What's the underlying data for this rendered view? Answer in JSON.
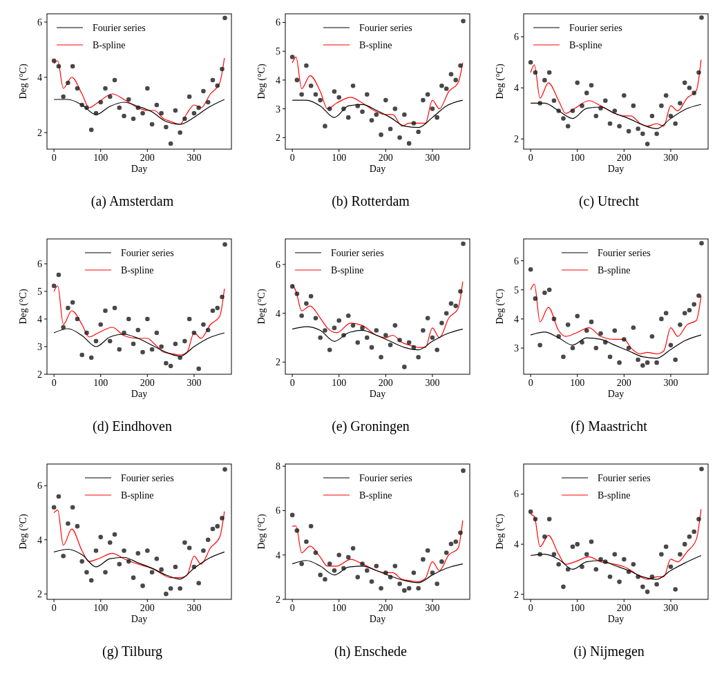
{
  "chart_data": [
    {
      "type": "scatter",
      "title": "(a) Amsterdam",
      "xlabel": "Day",
      "ylabel": "Deg (°C)",
      "xlim": [
        -15,
        380
      ],
      "ylim": [
        1.4,
        6.3
      ],
      "xticks": [
        0,
        100,
        200,
        300
      ],
      "yticks": [
        2,
        4,
        6
      ],
      "legend": "top left",
      "series": [
        {
          "color": "#1a1a1a",
          "marker": "circle",
          "x": [
            0,
            10,
            20,
            30,
            40,
            50,
            60,
            70,
            80,
            90,
            100,
            110,
            120,
            130,
            140,
            150,
            160,
            170,
            180,
            190,
            200,
            210,
            220,
            230,
            240,
            250,
            260,
            270,
            280,
            290,
            300,
            310,
            320,
            330,
            340,
            350,
            360,
            366
          ],
          "values": [
            4.6,
            4.4,
            3.3,
            3.8,
            4.4,
            3.6,
            3.0,
            2.9,
            2.1,
            2.7,
            3.1,
            3.6,
            3.3,
            3.9,
            2.9,
            2.6,
            3.2,
            2.5,
            2.9,
            2.7,
            3.6,
            2.3,
            3.0,
            2.7,
            2.2,
            1.6,
            2.8,
            2.0,
            2.5,
            3.3,
            2.7,
            2.9,
            3.5,
            3.1,
            3.9,
            3.7,
            4.3,
            6.15
          ]
        },
        {
          "type": "line",
          "name": "Fourier series",
          "color": "#000000",
          "x": [
            0,
            30,
            60,
            90,
            120,
            150,
            180,
            210,
            240,
            270,
            300,
            330,
            365
          ],
          "values": [
            3.2,
            3.2,
            3.0,
            2.65,
            2.95,
            3.1,
            2.95,
            2.75,
            2.4,
            2.3,
            2.55,
            2.9,
            3.2
          ]
        },
        {
          "type": "line",
          "name": "B-spline",
          "color": "#ff0000",
          "x": [
            0,
            8,
            20,
            38,
            60,
            75,
            95,
            125,
            150,
            180,
            200,
            215,
            235,
            250,
            270,
            285,
            300,
            315,
            335,
            355,
            365
          ],
          "values": [
            4.5,
            4.6,
            3.6,
            4.0,
            3.4,
            2.9,
            3.1,
            3.4,
            3.2,
            2.9,
            2.8,
            2.8,
            2.5,
            2.4,
            2.3,
            2.7,
            3.0,
            2.9,
            3.4,
            3.8,
            4.7
          ]
        }
      ]
    },
    {
      "type": "scatter",
      "title": "(b) Rotterdam",
      "xlabel": "Day",
      "ylabel": "Deg (°C)",
      "xlim": [
        -15,
        380
      ],
      "ylim": [
        1.6,
        6.3
      ],
      "xticks": [
        0,
        100,
        200,
        300
      ],
      "yticks": [
        2,
        3,
        4,
        5,
        6
      ],
      "legend": "top",
      "series": [
        {
          "color": "#1a1a1a",
          "marker": "circle",
          "x": [
            0,
            10,
            20,
            30,
            40,
            50,
            60,
            70,
            80,
            90,
            100,
            110,
            120,
            130,
            140,
            150,
            160,
            170,
            180,
            190,
            200,
            210,
            220,
            230,
            240,
            250,
            260,
            270,
            280,
            290,
            300,
            310,
            320,
            330,
            340,
            350,
            360,
            366
          ],
          "values": [
            4.8,
            4.0,
            3.5,
            4.5,
            3.8,
            3.5,
            3.3,
            2.4,
            3.0,
            3.6,
            3.4,
            3.0,
            2.7,
            3.8,
            3.1,
            2.9,
            3.5,
            2.6,
            2.8,
            2.1,
            3.3,
            2.3,
            3.0,
            2.0,
            2.8,
            1.8,
            2.5,
            2.2,
            3.3,
            3.5,
            3.0,
            2.7,
            3.8,
            3.7,
            4.2,
            4.0,
            4.5,
            6.05
          ]
        },
        {
          "type": "line",
          "name": "Fourier series",
          "color": "#000000",
          "x": [
            0,
            30,
            60,
            90,
            120,
            150,
            180,
            210,
            240,
            270,
            300,
            330,
            365
          ],
          "values": [
            3.3,
            3.3,
            3.1,
            2.7,
            3.1,
            3.15,
            2.95,
            2.7,
            2.4,
            2.35,
            2.7,
            3.1,
            3.3
          ]
        },
        {
          "type": "line",
          "name": "B-spline",
          "color": "#ff0000",
          "x": [
            0,
            8,
            20,
            38,
            60,
            75,
            95,
            125,
            150,
            180,
            200,
            215,
            235,
            250,
            270,
            285,
            300,
            315,
            335,
            355,
            365
          ],
          "values": [
            4.6,
            4.8,
            3.7,
            4.15,
            3.6,
            3.0,
            3.2,
            3.4,
            3.2,
            2.9,
            2.8,
            2.8,
            2.4,
            2.5,
            2.5,
            2.5,
            3.3,
            3.0,
            3.6,
            3.9,
            4.6
          ]
        }
      ]
    },
    {
      "type": "scatter",
      "title": "(c) Utrecht",
      "xlabel": "Day",
      "ylabel": "Deg (°C)",
      "xlim": [
        -15,
        380
      ],
      "ylim": [
        1.6,
        6.9
      ],
      "xticks": [
        0,
        100,
        200,
        300
      ],
      "yticks": [
        2,
        4,
        6
      ],
      "legend": "top left",
      "series": [
        {
          "color": "#1a1a1a",
          "marker": "circle",
          "x": [
            0,
            10,
            20,
            30,
            40,
            50,
            60,
            70,
            80,
            90,
            100,
            110,
            120,
            130,
            140,
            150,
            160,
            170,
            180,
            190,
            200,
            210,
            220,
            230,
            240,
            250,
            260,
            270,
            280,
            290,
            300,
            310,
            320,
            330,
            340,
            350,
            360,
            366
          ],
          "values": [
            5.0,
            4.6,
            3.4,
            4.3,
            4.6,
            3.5,
            3.1,
            2.8,
            2.5,
            3.1,
            4.2,
            3.3,
            3.8,
            4.1,
            2.9,
            3.2,
            3.5,
            2.6,
            3.1,
            2.5,
            3.7,
            2.3,
            3.3,
            2.4,
            2.2,
            1.8,
            2.9,
            2.2,
            3.3,
            3.7,
            2.9,
            2.6,
            3.4,
            4.2,
            4.0,
            3.8,
            4.6,
            6.75
          ]
        },
        {
          "type": "line",
          "name": "Fourier series",
          "color": "#000000",
          "x": [
            0,
            30,
            60,
            90,
            120,
            150,
            180,
            210,
            240,
            270,
            300,
            330,
            365
          ],
          "values": [
            3.4,
            3.4,
            3.1,
            2.8,
            3.2,
            3.25,
            3.0,
            2.8,
            2.55,
            2.4,
            2.8,
            3.15,
            3.35
          ]
        },
        {
          "type": "line",
          "name": "B-spline",
          "color": "#ff0000",
          "x": [
            0,
            8,
            20,
            38,
            60,
            75,
            95,
            125,
            150,
            180,
            200,
            215,
            235,
            250,
            270,
            285,
            300,
            315,
            335,
            355,
            365
          ],
          "values": [
            4.6,
            4.9,
            3.6,
            4.2,
            3.5,
            3.0,
            3.2,
            3.5,
            3.3,
            3.0,
            2.9,
            2.9,
            2.6,
            2.5,
            2.6,
            2.5,
            3.3,
            3.1,
            3.6,
            3.9,
            5.1
          ]
        }
      ]
    },
    {
      "type": "scatter",
      "title": "(d) Eindhoven",
      "xlabel": "Day",
      "ylabel": "Deg (°C)",
      "xlim": [
        -15,
        380
      ],
      "ylim": [
        2,
        6.9
      ],
      "xticks": [
        0,
        100,
        200,
        300
      ],
      "yticks": [
        2,
        3,
        4,
        5,
        6
      ],
      "legend": "top",
      "series": [
        {
          "color": "#1a1a1a",
          "marker": "circle",
          "x": [
            0,
            10,
            20,
            30,
            40,
            50,
            60,
            70,
            80,
            90,
            100,
            110,
            120,
            130,
            140,
            150,
            160,
            170,
            180,
            190,
            200,
            210,
            220,
            230,
            240,
            250,
            260,
            270,
            280,
            290,
            300,
            310,
            320,
            330,
            340,
            350,
            360,
            366
          ],
          "values": [
            5.2,
            5.6,
            3.7,
            4.4,
            4.6,
            4.0,
            2.7,
            3.5,
            2.6,
            3.2,
            3.8,
            4.3,
            3.2,
            4.4,
            2.9,
            3.5,
            4.0,
            3.1,
            3.6,
            2.8,
            4.0,
            2.9,
            3.5,
            3.0,
            2.4,
            2.3,
            3.1,
            2.6,
            3.2,
            4.0,
            3.5,
            2.2,
            3.8,
            3.6,
            4.3,
            4.4,
            4.8,
            6.7
          ]
        },
        {
          "type": "line",
          "name": "Fourier series",
          "color": "#000000",
          "x": [
            0,
            30,
            60,
            90,
            120,
            150,
            180,
            210,
            240,
            270,
            300,
            330,
            365
          ],
          "values": [
            3.5,
            3.65,
            3.4,
            3.0,
            3.35,
            3.45,
            3.3,
            3.05,
            2.8,
            2.65,
            3.0,
            3.3,
            3.5
          ]
        },
        {
          "type": "line",
          "name": "B-spline",
          "color": "#ff0000",
          "x": [
            0,
            8,
            20,
            38,
            60,
            75,
            95,
            125,
            150,
            180,
            200,
            215,
            235,
            250,
            270,
            285,
            300,
            315,
            335,
            355,
            365
          ],
          "values": [
            5.0,
            5.2,
            3.8,
            4.3,
            3.8,
            3.35,
            3.5,
            3.7,
            3.4,
            3.3,
            3.3,
            3.1,
            2.8,
            2.75,
            2.7,
            2.8,
            3.5,
            3.3,
            3.8,
            4.1,
            5.1
          ]
        }
      ]
    },
    {
      "type": "scatter",
      "title": "(e) Groningen",
      "xlabel": "Day",
      "ylabel": "Deg (°C)",
      "xlim": [
        -15,
        380
      ],
      "ylim": [
        1.5,
        7.05
      ],
      "xticks": [
        0,
        100,
        200,
        300
      ],
      "yticks": [
        2,
        4,
        6
      ],
      "legend": "top left",
      "series": [
        {
          "color": "#1a1a1a",
          "marker": "circle",
          "x": [
            0,
            10,
            20,
            30,
            40,
            50,
            60,
            70,
            80,
            90,
            100,
            110,
            120,
            130,
            140,
            150,
            160,
            170,
            180,
            190,
            200,
            210,
            220,
            230,
            240,
            250,
            260,
            270,
            280,
            290,
            300,
            310,
            320,
            330,
            340,
            350,
            360,
            366
          ],
          "values": [
            5.1,
            4.8,
            3.9,
            4.4,
            4.7,
            3.8,
            3.0,
            3.3,
            2.5,
            3.4,
            3.7,
            3.1,
            3.9,
            3.5,
            2.8,
            3.4,
            3.0,
            2.6,
            3.3,
            2.2,
            3.1,
            2.7,
            3.5,
            2.9,
            1.8,
            2.8,
            2.6,
            2.2,
            3.3,
            3.8,
            3.0,
            2.5,
            3.6,
            4.0,
            4.4,
            4.3,
            4.9,
            6.85
          ]
        },
        {
          "type": "line",
          "name": "Fourier series",
          "color": "#000000",
          "x": [
            0,
            30,
            60,
            90,
            120,
            150,
            180,
            210,
            240,
            270,
            300,
            330,
            365
          ],
          "values": [
            3.35,
            3.45,
            3.3,
            2.85,
            3.2,
            3.3,
            3.1,
            2.85,
            2.6,
            2.5,
            2.85,
            3.15,
            3.35
          ]
        },
        {
          "type": "line",
          "name": "B-spline",
          "color": "#ff0000",
          "x": [
            0,
            8,
            20,
            38,
            60,
            75,
            95,
            125,
            150,
            180,
            200,
            215,
            235,
            250,
            270,
            285,
            300,
            315,
            335,
            355,
            365
          ],
          "values": [
            5.2,
            4.9,
            4.1,
            4.3,
            3.8,
            3.4,
            3.2,
            3.6,
            3.5,
            3.1,
            3.0,
            3.1,
            2.8,
            2.7,
            2.6,
            2.6,
            3.4,
            3.0,
            3.8,
            4.2,
            5.3
          ]
        }
      ]
    },
    {
      "type": "scatter",
      "title": "(f) Maastricht",
      "xlabel": "Day",
      "ylabel": "Deg (°C)",
      "xlim": [
        -15,
        380
      ],
      "ylim": [
        2.1,
        6.75
      ],
      "xticks": [
        0,
        100,
        200,
        300
      ],
      "yticks": [
        3,
        4,
        5,
        6
      ],
      "legend": "top",
      "series": [
        {
          "color": "#1a1a1a",
          "marker": "circle",
          "x": [
            0,
            10,
            20,
            30,
            40,
            50,
            60,
            70,
            80,
            90,
            100,
            110,
            120,
            130,
            140,
            150,
            160,
            170,
            180,
            190,
            200,
            210,
            220,
            230,
            240,
            250,
            260,
            270,
            280,
            290,
            300,
            310,
            320,
            330,
            340,
            350,
            360,
            366
          ],
          "values": [
            5.7,
            4.7,
            3.1,
            4.9,
            5.0,
            4.0,
            3.4,
            2.7,
            3.8,
            3.0,
            4.1,
            3.2,
            3.6,
            3.9,
            3.0,
            3.5,
            3.2,
            2.7,
            3.6,
            2.5,
            3.3,
            3.0,
            3.7,
            2.6,
            2.4,
            2.5,
            3.4,
            2.5,
            4.0,
            4.2,
            3.1,
            2.6,
            3.8,
            4.2,
            4.3,
            4.5,
            4.8,
            6.6
          ]
        },
        {
          "type": "line",
          "name": "Fourier series",
          "color": "#000000",
          "x": [
            0,
            30,
            60,
            90,
            120,
            150,
            180,
            210,
            240,
            270,
            300,
            330,
            365
          ],
          "values": [
            3.45,
            3.55,
            3.35,
            3.1,
            3.35,
            3.3,
            3.1,
            2.9,
            2.7,
            2.65,
            2.95,
            3.25,
            3.45
          ]
        },
        {
          "type": "line",
          "name": "B-spline",
          "color": "#ff0000",
          "x": [
            0,
            8,
            20,
            38,
            60,
            75,
            95,
            125,
            150,
            180,
            200,
            215,
            235,
            250,
            270,
            285,
            300,
            315,
            335,
            355,
            365
          ],
          "values": [
            5.0,
            5.2,
            3.9,
            4.4,
            3.6,
            3.4,
            3.5,
            3.7,
            3.4,
            3.3,
            3.3,
            3.0,
            2.8,
            2.85,
            2.8,
            2.9,
            3.7,
            3.4,
            3.8,
            3.95,
            4.8
          ]
        }
      ]
    },
    {
      "type": "scatter",
      "title": "(g) Tilburg",
      "xlabel": "Day",
      "ylabel": "Deg (°C)",
      "xlim": [
        -15,
        380
      ],
      "ylim": [
        1.8,
        6.8
      ],
      "xticks": [
        0,
        100,
        200,
        300
      ],
      "yticks": [
        2,
        4,
        6
      ],
      "legend": "top",
      "series": [
        {
          "color": "#1a1a1a",
          "marker": "circle",
          "x": [
            0,
            10,
            20,
            30,
            40,
            50,
            60,
            70,
            80,
            90,
            100,
            110,
            120,
            130,
            140,
            150,
            160,
            170,
            180,
            190,
            200,
            210,
            220,
            230,
            240,
            250,
            260,
            270,
            280,
            290,
            300,
            310,
            320,
            330,
            340,
            350,
            360,
            366
          ],
          "values": [
            5.2,
            5.6,
            3.4,
            4.6,
            5.2,
            4.5,
            3.2,
            2.8,
            2.5,
            3.6,
            4.1,
            2.8,
            3.9,
            4.2,
            3.1,
            3.6,
            3.2,
            2.6,
            3.5,
            2.3,
            3.6,
            2.8,
            3.3,
            2.9,
            2.0,
            2.2,
            3.0,
            2.2,
            3.9,
            3.7,
            3.0,
            2.4,
            3.6,
            4.0,
            4.4,
            4.5,
            4.8,
            6.6
          ]
        },
        {
          "type": "line",
          "name": "Fourier series",
          "color": "#000000",
          "x": [
            0,
            30,
            60,
            90,
            120,
            150,
            180,
            210,
            240,
            270,
            300,
            330,
            365
          ],
          "values": [
            3.55,
            3.65,
            3.45,
            3.0,
            3.3,
            3.35,
            3.15,
            2.95,
            2.7,
            2.55,
            2.95,
            3.3,
            3.55
          ]
        },
        {
          "type": "line",
          "name": "B-spline",
          "color": "#ff0000",
          "x": [
            0,
            8,
            20,
            38,
            60,
            75,
            95,
            125,
            150,
            180,
            200,
            215,
            235,
            250,
            270,
            285,
            300,
            315,
            335,
            355,
            365
          ],
          "values": [
            5.0,
            5.1,
            3.8,
            4.4,
            3.6,
            3.2,
            3.3,
            3.5,
            3.3,
            3.1,
            3.0,
            2.9,
            2.7,
            2.6,
            2.6,
            2.7,
            3.4,
            3.1,
            3.7,
            4.1,
            5.05
          ]
        }
      ]
    },
    {
      "type": "scatter",
      "title": "(h) Enschede",
      "xlabel": "Day",
      "ylabel": "Deg (°C)",
      "xlim": [
        -15,
        380
      ],
      "ylim": [
        2,
        8.1
      ],
      "xticks": [
        0,
        100,
        200,
        300
      ],
      "yticks": [
        2,
        4,
        6,
        8
      ],
      "legend": "top",
      "series": [
        {
          "color": "#1a1a1a",
          "marker": "circle",
          "x": [
            0,
            10,
            20,
            30,
            40,
            50,
            60,
            70,
            80,
            90,
            100,
            110,
            120,
            130,
            140,
            150,
            160,
            170,
            180,
            190,
            200,
            210,
            220,
            230,
            240,
            250,
            260,
            270,
            280,
            290,
            300,
            310,
            320,
            330,
            340,
            350,
            360,
            366
          ],
          "values": [
            5.8,
            5.1,
            3.6,
            4.6,
            5.3,
            4.1,
            3.1,
            2.9,
            3.6,
            3.3,
            4.0,
            3.4,
            3.9,
            4.3,
            3.0,
            3.6,
            3.3,
            2.8,
            3.5,
            2.5,
            3.2,
            3.0,
            3.5,
            2.7,
            2.4,
            2.5,
            3.2,
            2.5,
            3.8,
            4.2,
            3.2,
            2.7,
            3.7,
            4.1,
            4.5,
            4.6,
            5.0,
            7.8
          ]
        },
        {
          "type": "line",
          "name": "Fourier series",
          "color": "#000000",
          "x": [
            0,
            30,
            60,
            90,
            120,
            150,
            180,
            210,
            240,
            270,
            300,
            330,
            365
          ],
          "values": [
            3.6,
            3.75,
            3.5,
            3.1,
            3.45,
            3.5,
            3.3,
            3.05,
            2.85,
            2.75,
            3.1,
            3.4,
            3.6
          ]
        },
        {
          "type": "line",
          "name": "B-spline",
          "color": "#ff0000",
          "x": [
            0,
            8,
            20,
            38,
            60,
            75,
            95,
            125,
            150,
            180,
            200,
            215,
            235,
            250,
            270,
            285,
            300,
            315,
            335,
            355,
            365
          ],
          "values": [
            5.3,
            5.3,
            4.1,
            4.4,
            3.9,
            3.5,
            3.5,
            3.8,
            3.6,
            3.3,
            3.2,
            3.2,
            2.9,
            2.85,
            2.8,
            2.95,
            3.7,
            3.3,
            4.0,
            4.3,
            5.55
          ]
        }
      ]
    },
    {
      "type": "scatter",
      "title": "(i) Nijmegen",
      "xlabel": "Day",
      "ylabel": "Deg (°C)",
      "xlim": [
        -15,
        380
      ],
      "ylim": [
        1.8,
        7.2
      ],
      "xticks": [
        0,
        100,
        200,
        300
      ],
      "yticks": [
        2,
        4,
        6
      ],
      "legend": "top",
      "series": [
        {
          "color": "#1a1a1a",
          "marker": "circle",
          "x": [
            0,
            10,
            20,
            30,
            40,
            50,
            60,
            70,
            80,
            90,
            100,
            110,
            120,
            130,
            140,
            150,
            160,
            170,
            180,
            190,
            200,
            210,
            220,
            230,
            240,
            250,
            260,
            270,
            280,
            290,
            300,
            310,
            320,
            330,
            340,
            350,
            360,
            366
          ],
          "values": [
            5.3,
            5.0,
            3.6,
            4.3,
            5.0,
            3.6,
            3.2,
            2.3,
            3.0,
            3.9,
            4.0,
            3.1,
            3.6,
            4.1,
            3.0,
            3.4,
            3.3,
            2.7,
            3.6,
            2.5,
            3.4,
            2.9,
            3.2,
            2.7,
            2.3,
            2.1,
            2.7,
            2.4,
            3.6,
            3.9,
            3.1,
            2.2,
            3.6,
            4.0,
            4.3,
            4.5,
            5.0,
            7.0
          ]
        },
        {
          "type": "line",
          "name": "Fourier series",
          "color": "#000000",
          "x": [
            0,
            30,
            60,
            90,
            120,
            150,
            180,
            210,
            240,
            270,
            300,
            330,
            365
          ],
          "values": [
            3.55,
            3.6,
            3.4,
            3.0,
            3.3,
            3.35,
            3.15,
            2.95,
            2.7,
            2.6,
            2.95,
            3.25,
            3.55
          ]
        },
        {
          "type": "line",
          "name": "B-spline",
          "color": "#ff0000",
          "x": [
            0,
            8,
            20,
            38,
            60,
            75,
            95,
            125,
            150,
            180,
            200,
            215,
            235,
            250,
            270,
            285,
            300,
            315,
            335,
            355,
            365
          ],
          "values": [
            5.2,
            5.1,
            3.9,
            4.35,
            3.6,
            3.2,
            3.3,
            3.5,
            3.3,
            3.2,
            3.1,
            2.95,
            2.7,
            2.6,
            2.7,
            2.7,
            3.4,
            3.3,
            3.7,
            4.2,
            5.4
          ]
        }
      ]
    }
  ]
}
